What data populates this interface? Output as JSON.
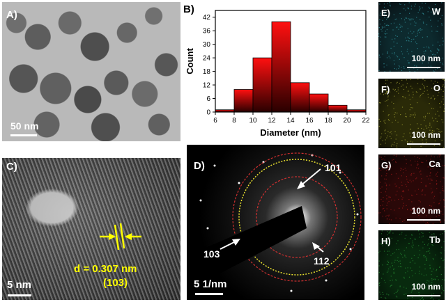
{
  "panels": {
    "a": {
      "label": "A)",
      "scalebar": "50 nm"
    },
    "b": {
      "label": "B)"
    },
    "c": {
      "label": "C)",
      "scalebar": "5 nm",
      "d_spacing": "d = 0.307 nm",
      "plane": "(103)"
    },
    "d": {
      "label": "D)",
      "scalebar": "5 1/nm",
      "rings": [
        "101",
        "103",
        "112"
      ]
    },
    "e": {
      "label": "E)",
      "element": "W",
      "scalebar": "100 nm"
    },
    "f": {
      "label": "F)",
      "element": "O",
      "scalebar": "100 nm"
    },
    "g": {
      "label": "G)",
      "element": "Ca",
      "scalebar": "100 nm"
    },
    "h": {
      "label": "H)",
      "element": "Tb",
      "scalebar": "100 nm"
    }
  },
  "colors": {
    "annotation_yellow": "#ffff00",
    "bar_top": "#ff1010",
    "bar_bottom": "#2a0000",
    "eds_w": "#3fb8c4",
    "eds_o": "#c8c840",
    "eds_ca": "#c02020",
    "eds_tb": "#30b040"
  },
  "chart_data": {
    "type": "bar",
    "bin_edges": [
      6,
      8,
      10,
      12,
      14,
      16,
      18,
      20,
      22
    ],
    "values": [
      1,
      10,
      24,
      40,
      13,
      8,
      3,
      1
    ],
    "xlabel": "Diameter (nm)",
    "ylabel": "Count",
    "xlim": [
      6,
      22
    ],
    "ylim": [
      0,
      45
    ],
    "xticks": [
      6,
      8,
      10,
      12,
      14,
      16,
      18,
      20,
      22
    ],
    "yticks": [
      0,
      6,
      12,
      18,
      24,
      30,
      36,
      42
    ],
    "grid": false
  }
}
